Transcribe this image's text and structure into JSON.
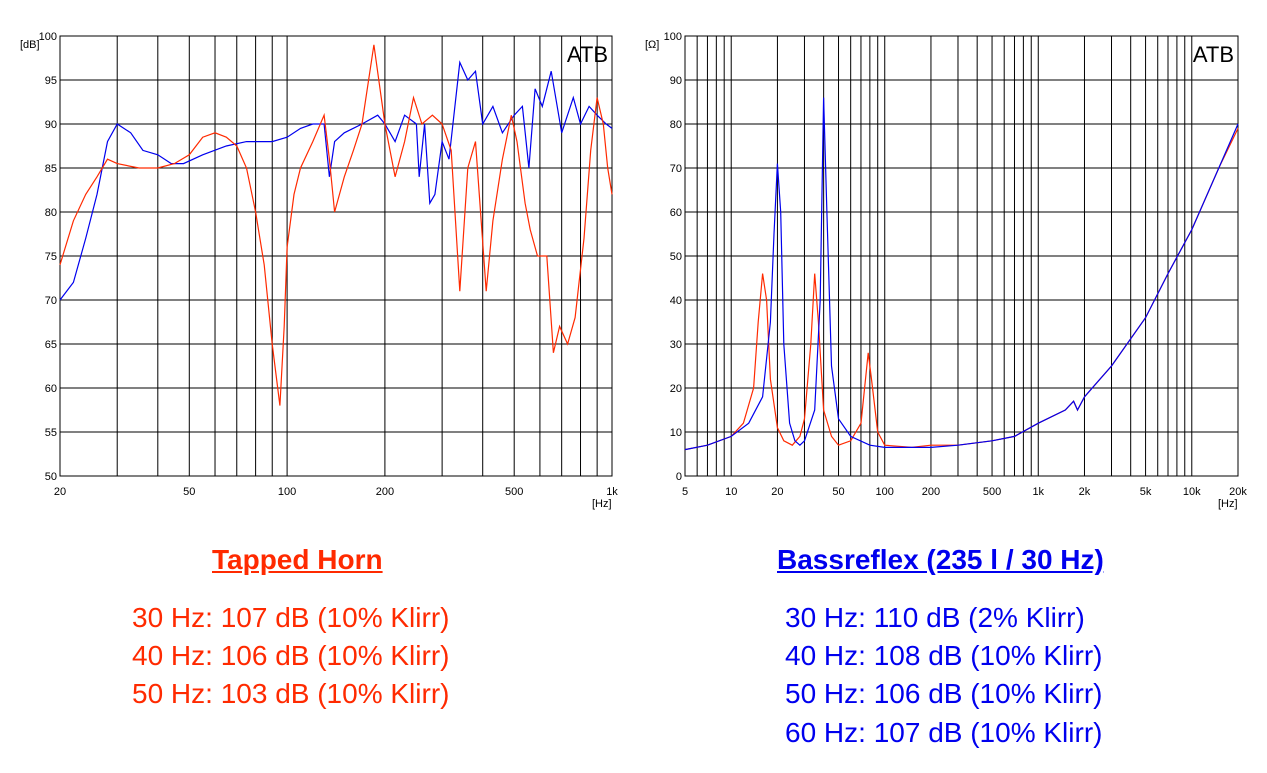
{
  "colors": {
    "red": "#ff2a00",
    "blue": "#0000ee",
    "grid": "#000000"
  },
  "chart_data": [
    {
      "type": "line",
      "watermark": "ATB",
      "ylabel": "[dB]",
      "xlabel": "[Hz]",
      "xscale": "log",
      "xlim": [
        20,
        1000
      ],
      "ylim": [
        50,
        100
      ],
      "xticks": [
        {
          "v": 20,
          "l": "20"
        },
        {
          "v": 50,
          "l": "50"
        },
        {
          "v": 100,
          "l": "100"
        },
        {
          "v": 200,
          "l": "200"
        },
        {
          "v": 500,
          "l": "500"
        },
        {
          "v": 1000,
          "l": "1k"
        }
      ],
      "yticks": [
        50,
        55,
        60,
        65,
        70,
        75,
        80,
        85,
        90,
        95,
        100
      ],
      "grid": true,
      "series": [
        {
          "color": "blue",
          "points": [
            [
              20,
              70
            ],
            [
              22,
              72
            ],
            [
              24,
              77
            ],
            [
              26,
              82
            ],
            [
              28,
              88
            ],
            [
              30,
              90
            ],
            [
              33,
              89
            ],
            [
              36,
              87
            ],
            [
              40,
              86.5
            ],
            [
              44,
              85.5
            ],
            [
              48,
              85.5
            ],
            [
              55,
              86.5
            ],
            [
              65,
              87.5
            ],
            [
              75,
              88
            ],
            [
              90,
              88
            ],
            [
              100,
              88.5
            ],
            [
              110,
              89.5
            ],
            [
              120,
              90
            ],
            [
              130,
              90
            ],
            [
              135,
              84
            ],
            [
              140,
              88
            ],
            [
              150,
              89
            ],
            [
              170,
              90
            ],
            [
              190,
              91
            ],
            [
              200,
              90
            ],
            [
              215,
              88
            ],
            [
              230,
              91
            ],
            [
              250,
              90
            ],
            [
              255,
              84
            ],
            [
              265,
              90
            ],
            [
              275,
              81
            ],
            [
              285,
              82
            ],
            [
              300,
              88
            ],
            [
              315,
              86
            ],
            [
              340,
              97
            ],
            [
              360,
              95
            ],
            [
              380,
              96
            ],
            [
              400,
              90
            ],
            [
              430,
              92
            ],
            [
              460,
              89
            ],
            [
              500,
              91
            ],
            [
              530,
              92
            ],
            [
              555,
              85
            ],
            [
              580,
              94
            ],
            [
              610,
              92
            ],
            [
              650,
              96
            ],
            [
              700,
              89
            ],
            [
              760,
              93
            ],
            [
              800,
              90
            ],
            [
              850,
              92
            ],
            [
              900,
              91
            ],
            [
              960,
              90
            ],
            [
              1000,
              89.5
            ]
          ]
        },
        {
          "color": "red",
          "points": [
            [
              20,
              74
            ],
            [
              22,
              79
            ],
            [
              24,
              82
            ],
            [
              26,
              84
            ],
            [
              28,
              86
            ],
            [
              30,
              85.5
            ],
            [
              35,
              85
            ],
            [
              40,
              85
            ],
            [
              45,
              85.5
            ],
            [
              50,
              86.5
            ],
            [
              55,
              88.5
            ],
            [
              60,
              89
            ],
            [
              65,
              88.5
            ],
            [
              70,
              87.5
            ],
            [
              75,
              85
            ],
            [
              80,
              80
            ],
            [
              85,
              74
            ],
            [
              90,
              65
            ],
            [
              95,
              58
            ],
            [
              98,
              67
            ],
            [
              100,
              76
            ],
            [
              105,
              82
            ],
            [
              110,
              85
            ],
            [
              120,
              88
            ],
            [
              130,
              91
            ],
            [
              135,
              86
            ],
            [
              140,
              80
            ],
            [
              150,
              84
            ],
            [
              160,
              87
            ],
            [
              170,
              90
            ],
            [
              185,
              99
            ],
            [
              200,
              90
            ],
            [
              215,
              84
            ],
            [
              230,
              88
            ],
            [
              245,
              93
            ],
            [
              260,
              90
            ],
            [
              280,
              91
            ],
            [
              300,
              90
            ],
            [
              320,
              87
            ],
            [
              340,
              71
            ],
            [
              360,
              85
            ],
            [
              380,
              88
            ],
            [
              410,
              71
            ],
            [
              430,
              79
            ],
            [
              460,
              86
            ],
            [
              490,
              91
            ],
            [
              510,
              88
            ],
            [
              540,
              81
            ],
            [
              560,
              78
            ],
            [
              590,
              75
            ],
            [
              630,
              75
            ],
            [
              660,
              64
            ],
            [
              690,
              67
            ],
            [
              730,
              65
            ],
            [
              770,
              68
            ],
            [
              820,
              77
            ],
            [
              860,
              87
            ],
            [
              900,
              93
            ],
            [
              940,
              90
            ],
            [
              970,
              85
            ],
            [
              1000,
              82
            ]
          ]
        }
      ]
    },
    {
      "type": "line",
      "watermark": "ATB",
      "ylabel": "[Ω]",
      "xlabel": "[Hz]",
      "xscale": "log",
      "xlim": [
        5,
        20000
      ],
      "ylim": [
        0,
        100
      ],
      "xticks": [
        {
          "v": 5,
          "l": "5"
        },
        {
          "v": 10,
          "l": "10"
        },
        {
          "v": 20,
          "l": "20"
        },
        {
          "v": 50,
          "l": "50"
        },
        {
          "v": 100,
          "l": "100"
        },
        {
          "v": 200,
          "l": "200"
        },
        {
          "v": 500,
          "l": "500"
        },
        {
          "v": 1000,
          "l": "1k"
        },
        {
          "v": 2000,
          "l": "2k"
        },
        {
          "v": 5000,
          "l": "5k"
        },
        {
          "v": 10000,
          "l": "10k"
        },
        {
          "v": 20000,
          "l": "20k"
        }
      ],
      "yticks": [
        0,
        10,
        20,
        30,
        40,
        50,
        60,
        70,
        80,
        90,
        100
      ],
      "grid": true,
      "series": [
        {
          "color": "red",
          "points": [
            [
              5,
              6
            ],
            [
              7,
              7
            ],
            [
              10,
              9
            ],
            [
              12,
              12
            ],
            [
              14,
              20
            ],
            [
              15,
              35
            ],
            [
              16,
              46
            ],
            [
              17,
              40
            ],
            [
              18,
              22
            ],
            [
              20,
              11
            ],
            [
              22,
              8
            ],
            [
              25,
              7
            ],
            [
              28,
              9
            ],
            [
              30,
              13
            ],
            [
              33,
              30
            ],
            [
              35,
              46
            ],
            [
              37,
              35
            ],
            [
              40,
              15
            ],
            [
              45,
              9
            ],
            [
              50,
              7
            ],
            [
              60,
              8
            ],
            [
              70,
              12
            ],
            [
              78,
              28
            ],
            [
              82,
              22
            ],
            [
              90,
              10
            ],
            [
              100,
              7
            ],
            [
              150,
              6.5
            ],
            [
              200,
              7
            ],
            [
              300,
              7
            ],
            [
              500,
              8
            ],
            [
              700,
              9
            ],
            [
              1000,
              12
            ],
            [
              1500,
              15
            ],
            [
              1700,
              17
            ],
            [
              1800,
              15
            ],
            [
              2000,
              18
            ],
            [
              3000,
              25
            ],
            [
              5000,
              36
            ],
            [
              7000,
              46
            ],
            [
              10000,
              56
            ],
            [
              15000,
              70
            ],
            [
              20000,
              79
            ]
          ]
        },
        {
          "color": "blue",
          "points": [
            [
              5,
              6
            ],
            [
              7,
              7
            ],
            [
              10,
              9
            ],
            [
              13,
              12
            ],
            [
              16,
              18
            ],
            [
              18,
              35
            ],
            [
              19,
              55
            ],
            [
              20,
              71
            ],
            [
              21,
              60
            ],
            [
              22,
              30
            ],
            [
              24,
              12
            ],
            [
              26,
              8
            ],
            [
              28,
              7
            ],
            [
              30,
              8
            ],
            [
              35,
              15
            ],
            [
              38,
              40
            ],
            [
              40,
              86
            ],
            [
              42,
              60
            ],
            [
              45,
              25
            ],
            [
              50,
              13
            ],
            [
              60,
              9
            ],
            [
              80,
              7
            ],
            [
              100,
              6.5
            ],
            [
              200,
              6.5
            ],
            [
              300,
              7
            ],
            [
              500,
              8
            ],
            [
              700,
              9
            ],
            [
              1000,
              12
            ],
            [
              1500,
              15
            ],
            [
              1700,
              17
            ],
            [
              1800,
              15
            ],
            [
              2000,
              18
            ],
            [
              3000,
              25
            ],
            [
              5000,
              36
            ],
            [
              7000,
              46
            ],
            [
              10000,
              56
            ],
            [
              15000,
              70
            ],
            [
              20000,
              80
            ]
          ]
        }
      ]
    }
  ],
  "panels": {
    "tapped": {
      "heading": "Tapped Horn",
      "lines": [
        "30 Hz: 107 dB (10% Klirr)",
        "40 Hz: 106 dB (10% Klirr)",
        "50 Hz: 103 dB (10% Klirr)"
      ]
    },
    "bass": {
      "heading": "Bassreflex (235 l / 30 Hz)",
      "lines": [
        "30 Hz: 110 dB (2% Klirr)",
        "40 Hz: 108 dB (10% Klirr)",
        "50 Hz: 106 dB (10% Klirr)",
        "60 Hz: 107 dB (10% Klirr)"
      ]
    }
  }
}
